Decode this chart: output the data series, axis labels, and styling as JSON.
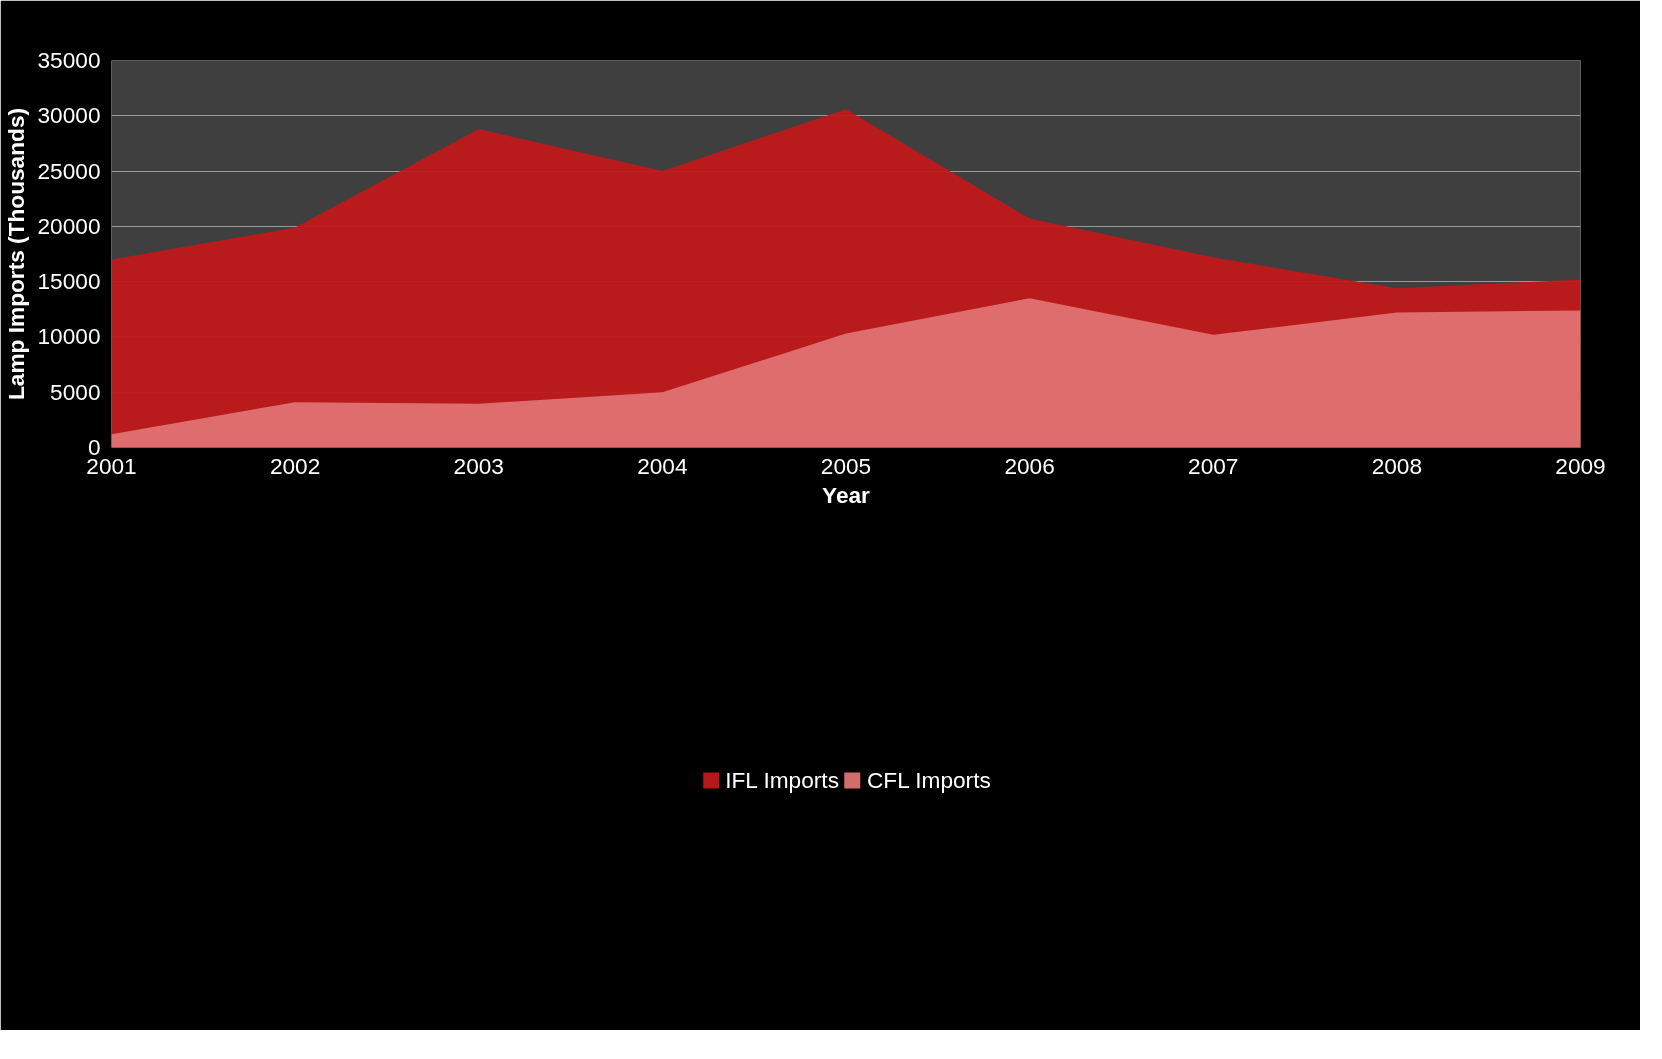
{
  "chart_data": {
    "type": "area",
    "xlabel": "Year",
    "ylabel": "Lamp Imports (Thousands)",
    "x": [
      2001,
      2002,
      2003,
      2004,
      2005,
      2006,
      2007,
      2008,
      2009
    ],
    "series": [
      {
        "name": "IFL Imports",
        "color": "#c0181a",
        "values": [
          17000,
          19900,
          28800,
          25000,
          30600,
          20700,
          17200,
          14400,
          15200
        ]
      },
      {
        "name": "CFL Imports",
        "color": "#e07272",
        "values": [
          1200,
          4100,
          3950,
          5000,
          10300,
          13500,
          10200,
          12200,
          12400
        ]
      }
    ],
    "xlim": [
      2001,
      2009
    ],
    "xticks": [
      2001,
      2002,
      2003,
      2004,
      2005,
      2006,
      2007,
      2008,
      2009
    ],
    "ylim": [
      0,
      35000
    ],
    "yticks": [
      0,
      5000,
      10000,
      15000,
      20000,
      25000,
      30000,
      35000
    ],
    "grid": "y",
    "legend": "bottom"
  }
}
